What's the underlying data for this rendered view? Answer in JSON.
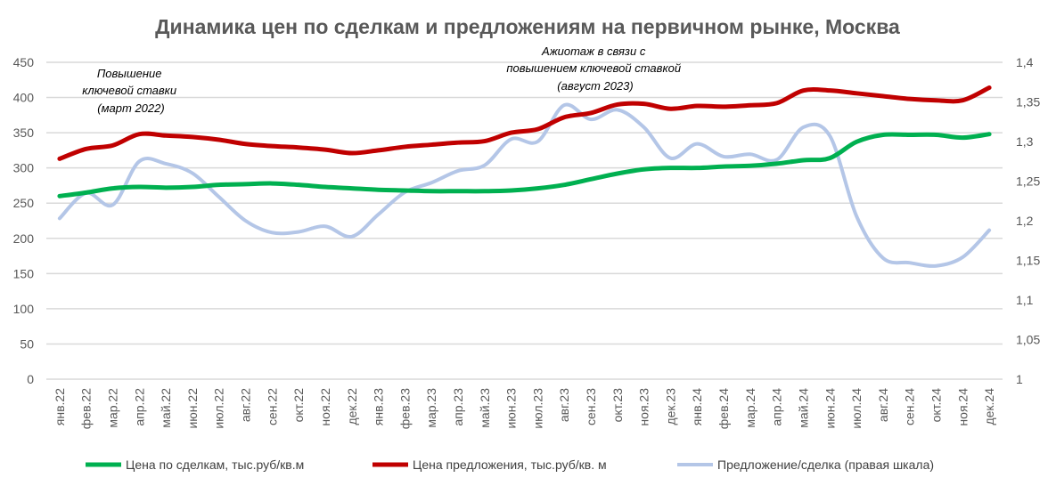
{
  "chart_data": {
    "type": "line",
    "title": "Динамика цен по сделкам и предложениям на первичном рынке, Москва",
    "categories": [
      "янв.22",
      "фев.22",
      "мар.22",
      "апр.22",
      "май.22",
      "июн.22",
      "июл.22",
      "авг.22",
      "сен.22",
      "окт.22",
      "ноя.22",
      "дек.22",
      "янв.23",
      "фев.23",
      "мар.23",
      "апр.23",
      "май.23",
      "июн.23",
      "июл.23",
      "авг.23",
      "сен.23",
      "окт.23",
      "ноя.23",
      "дек.23",
      "янв.24",
      "фев.24",
      "мар.24",
      "апр.24",
      "май.24",
      "июн.24",
      "июл.24",
      "авг.24",
      "сен.24",
      "окт.24",
      "ноя.24",
      "дек.24"
    ],
    "left_axis": {
      "ylim": [
        0,
        450
      ],
      "ticks": [
        "0",
        "50",
        "100",
        "150",
        "200",
        "250",
        "300",
        "350",
        "400",
        "450"
      ]
    },
    "right_axis": {
      "ylim": [
        1,
        1.4
      ],
      "ticks": [
        "1",
        "1,05",
        "1,1",
        "1,15",
        "1,2",
        "1,25",
        "1,3",
        "1,35",
        "1,4"
      ]
    },
    "grid": true,
    "legend_position": "bottom",
    "series": [
      {
        "name": "Цена по сделкам, тыс.руб/кв.м",
        "axis": "left",
        "color": "#00b050",
        "values": [
          260,
          265,
          271,
          273,
          272,
          273,
          276,
          277,
          278,
          276,
          273,
          271,
          269,
          268,
          267,
          267,
          267,
          268,
          271,
          276,
          284,
          292,
          298,
          300,
          300,
          302,
          303,
          306,
          311,
          314,
          337,
          347,
          347,
          347,
          343,
          348
        ]
      },
      {
        "name": "Цена предложения, тыс.руб/кв. м",
        "axis": "left",
        "color": "#c00000",
        "values": [
          313,
          327,
          332,
          348,
          346,
          344,
          340,
          334,
          331,
          329,
          326,
          321,
          325,
          330,
          333,
          336,
          338,
          350,
          355,
          372,
          378,
          390,
          391,
          384,
          388,
          387,
          389,
          392,
          410,
          410,
          406,
          402,
          398,
          396,
          396,
          414
        ]
      },
      {
        "name": "Предложение/сделка (правая шкала)",
        "axis": "right",
        "color": "#b4c6e7",
        "values": [
          1.203,
          1.235,
          1.22,
          1.275,
          1.272,
          1.26,
          1.23,
          1.2,
          1.185,
          1.186,
          1.193,
          1.18,
          1.208,
          1.236,
          1.248,
          1.263,
          1.27,
          1.303,
          1.3,
          1.346,
          1.328,
          1.34,
          1.318,
          1.279,
          1.297,
          1.281,
          1.284,
          1.277,
          1.318,
          1.307,
          1.206,
          1.153,
          1.147,
          1.143,
          1.154,
          1.188
        ]
      }
    ],
    "annotations": [
      {
        "lines": [
          "Повышение",
          "ключевой ставки",
          "(март 2022)"
        ]
      },
      {
        "lines": [
          "Ажиотаж в связи с",
          "повышением ключевой ставкой",
          "(август 2023)"
        ]
      }
    ]
  }
}
